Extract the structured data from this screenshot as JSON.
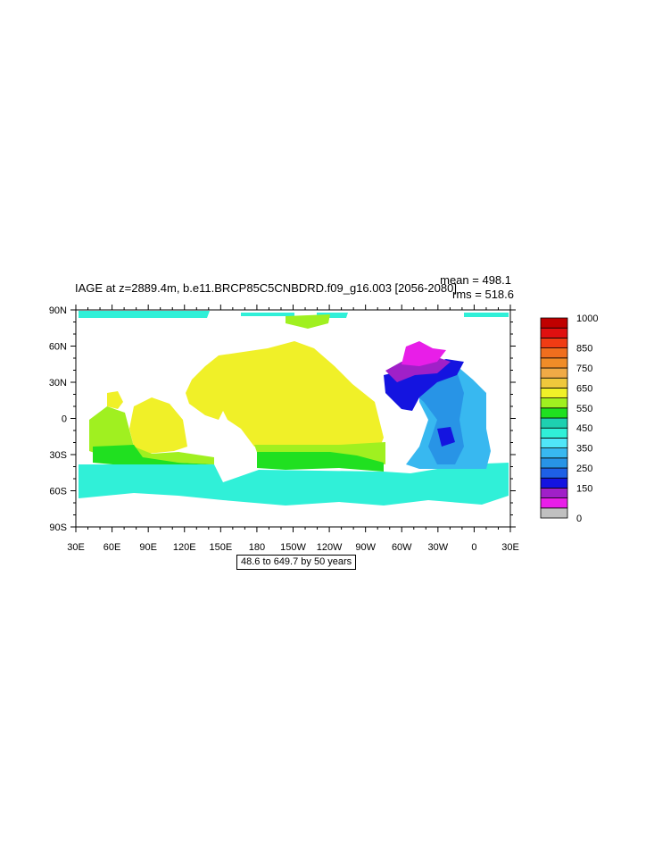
{
  "title": "IAGE at z=2889.4m, b.e11.BRCP85C5CNBDRD.f09_g16.003 [2056-2080]",
  "stats": {
    "mean": "mean = 498.1",
    "rms": "rms = 518.6"
  },
  "range_note": "48.6 to 649.7 by 50 years",
  "lon_ticks": [
    "30E",
    "60E",
    "90E",
    "120E",
    "150E",
    "180",
    "150W",
    "120W",
    "90W",
    "60W",
    "30W",
    "0",
    "30E"
  ],
  "lat_ticks": [
    "90N",
    "60N",
    "30N",
    "0",
    "30S",
    "60S",
    "90S"
  ],
  "colorbar": {
    "colors": [
      "#c0c0c0",
      "#e81ee8",
      "#a020c8",
      "#1414e0",
      "#1e60e6",
      "#2894e6",
      "#38b8f0",
      "#50e6f8",
      "#30f0d8",
      "#1ed0b0",
      "#20e020",
      "#a0f020",
      "#f0f028",
      "#f0c83c",
      "#f0aa46",
      "#f08c28",
      "#f06e1e",
      "#f03c14",
      "#e01010",
      "#c00000"
    ],
    "labels": [
      {
        "index": 0,
        "text": "0"
      },
      {
        "index": 3,
        "text": "150"
      },
      {
        "index": 5,
        "text": "250"
      },
      {
        "index": 7,
        "text": "350"
      },
      {
        "index": 9,
        "text": "450"
      },
      {
        "index": 11,
        "text": "550"
      },
      {
        "index": 13,
        "text": "650"
      },
      {
        "index": 15,
        "text": "750"
      },
      {
        "index": 17,
        "text": "850"
      },
      {
        "index": 19,
        "text": "1000"
      }
    ]
  },
  "colors": {
    "pacific": "#f0f028",
    "indian_mid": "#a0f020",
    "southern_green": "#20e020",
    "southern": "#30f0d8",
    "arctic": "#30f0d8",
    "atl_deep_blue": "#1414e0",
    "atl_blue": "#2894e6",
    "atl_light": "#38b8f0",
    "north_atl_purple": "#a020c8",
    "north_atl_magenta": "#e81ee8"
  }
}
